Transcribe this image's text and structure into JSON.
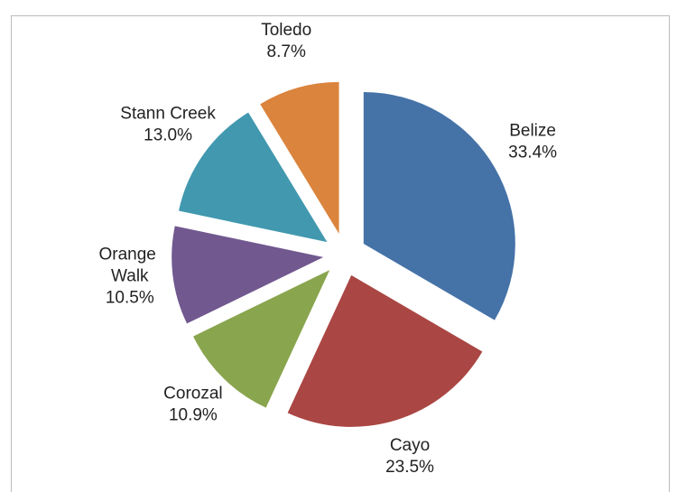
{
  "chart_data": {
    "type": "pie",
    "categories": [
      "Belize",
      "Cayo",
      "Corozal",
      "Orange Walk",
      "Stann Creek",
      "Toledo"
    ],
    "values": [
      33.4,
      23.5,
      10.9,
      10.5,
      13.0,
      8.7
    ],
    "value_labels": [
      "33.4%",
      "23.5%",
      "10.9%",
      "10.5%",
      "13.0%",
      "8.7%"
    ],
    "colors": [
      "#4572a7",
      "#aa4643",
      "#89a54e",
      "#71588f",
      "#4198af",
      "#db843d"
    ],
    "exploded": true
  }
}
